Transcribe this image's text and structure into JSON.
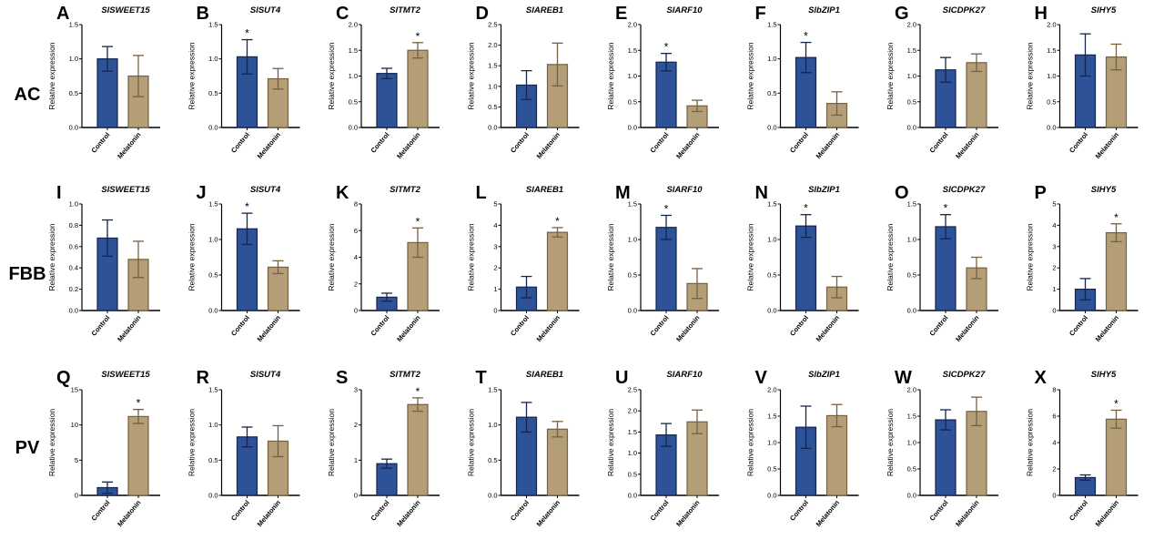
{
  "row_labels": [
    "AC",
    "FBB",
    "PV"
  ],
  "y_axis_label": "Relative expression",
  "colors": {
    "control": "#2d5297",
    "control_edge": "#14254f",
    "melatonin": "#b39e78",
    "melatonin_edge": "#75603f"
  },
  "chart_data": [
    {
      "panel": "A",
      "title": "SlSWEET15",
      "row": "AC",
      "type": "bar",
      "categories": [
        "Control",
        "Melatonin"
      ],
      "values": [
        1.0,
        0.75
      ],
      "errors": [
        0.18,
        0.3
      ],
      "significant": [
        false,
        false
      ],
      "ylim": [
        0,
        1.5
      ],
      "yticks": [
        "0.0",
        "0.5",
        "1.0",
        "1.5"
      ]
    },
    {
      "panel": "B",
      "title": "SlSUT4",
      "row": "AC",
      "type": "bar",
      "categories": [
        "Control",
        "Melatonin"
      ],
      "values": [
        1.03,
        0.71
      ],
      "errors": [
        0.25,
        0.15
      ],
      "significant": [
        true,
        false
      ],
      "ylim": [
        0,
        1.5
      ],
      "yticks": [
        "0.0",
        "0.5",
        "1.0",
        "1.5"
      ]
    },
    {
      "panel": "C",
      "title": "SlTMT2",
      "row": "AC",
      "type": "bar",
      "categories": [
        "Control",
        "Melatonin"
      ],
      "values": [
        1.05,
        1.5
      ],
      "errors": [
        0.1,
        0.15
      ],
      "significant": [
        false,
        true
      ],
      "ylim": [
        0,
        2.0
      ],
      "yticks": [
        "0.0",
        "0.5",
        "1.0",
        "1.5",
        "2.0"
      ]
    },
    {
      "panel": "D",
      "title": "SlAREB1",
      "row": "AC",
      "type": "bar",
      "categories": [
        "Control",
        "Melatonin"
      ],
      "values": [
        1.03,
        1.53
      ],
      "errors": [
        0.35,
        0.52
      ],
      "significant": [
        false,
        false
      ],
      "ylim": [
        0,
        2.5
      ],
      "yticks": [
        "0.0",
        "0.5",
        "1.0",
        "1.5",
        "2.0",
        "2.5"
      ]
    },
    {
      "panel": "E",
      "title": "SlARF10",
      "row": "AC",
      "type": "bar",
      "categories": [
        "Control",
        "Melatonin"
      ],
      "values": [
        1.27,
        0.42
      ],
      "errors": [
        0.17,
        0.11
      ],
      "significant": [
        true,
        false
      ],
      "ylim": [
        0,
        2.0
      ],
      "yticks": [
        "0.0",
        "0.5",
        "1.0",
        "1.5",
        "2.0"
      ]
    },
    {
      "panel": "F",
      "title": "SlbZIP1",
      "row": "AC",
      "type": "bar",
      "categories": [
        "Control",
        "Melatonin"
      ],
      "values": [
        1.02,
        0.35
      ],
      "errors": [
        0.22,
        0.17
      ],
      "significant": [
        true,
        false
      ],
      "ylim": [
        0,
        1.5
      ],
      "yticks": [
        "0.0",
        "0.5",
        "1.0",
        "1.5"
      ]
    },
    {
      "panel": "G",
      "title": "SlCDPK27",
      "row": "AC",
      "type": "bar",
      "categories": [
        "Control",
        "Melatonin"
      ],
      "values": [
        1.12,
        1.26
      ],
      "errors": [
        0.24,
        0.17
      ],
      "significant": [
        false,
        false
      ],
      "ylim": [
        0,
        2.0
      ],
      "yticks": [
        "0.0",
        "0.5",
        "1.0",
        "1.5",
        "2.0"
      ]
    },
    {
      "panel": "H",
      "title": "SlHY5",
      "row": "AC",
      "type": "bar",
      "categories": [
        "Control",
        "Melatonin"
      ],
      "values": [
        1.41,
        1.37
      ],
      "errors": [
        0.41,
        0.25
      ],
      "significant": [
        false,
        false
      ],
      "ylim": [
        0,
        2.0
      ],
      "yticks": [
        "0.0",
        "0.5",
        "1.0",
        "1.5",
        "2.0"
      ]
    },
    {
      "panel": "I",
      "title": "SlSWEET15",
      "row": "FBB",
      "type": "bar",
      "categories": [
        "Control",
        "Melatonin"
      ],
      "values": [
        0.68,
        0.48
      ],
      "errors": [
        0.17,
        0.17
      ],
      "significant": [
        false,
        false
      ],
      "ylim": [
        0,
        1.0
      ],
      "yticks": [
        "0.0",
        "0.2",
        "0.4",
        "0.6",
        "0.8",
        "1.0"
      ]
    },
    {
      "panel": "J",
      "title": "SlSUT4",
      "row": "FBB",
      "type": "bar",
      "categories": [
        "Control",
        "Melatonin"
      ],
      "values": [
        1.15,
        0.61
      ],
      "errors": [
        0.22,
        0.09
      ],
      "significant": [
        true,
        false
      ],
      "ylim": [
        0,
        1.5
      ],
      "yticks": [
        "0.0",
        "0.5",
        "1.0",
        "1.5"
      ]
    },
    {
      "panel": "K",
      "title": "SlTMT2",
      "row": "FBB",
      "type": "bar",
      "categories": [
        "Control",
        "Melatonin"
      ],
      "values": [
        1.0,
        5.1
      ],
      "errors": [
        0.3,
        1.1
      ],
      "significant": [
        false,
        true
      ],
      "ylim": [
        0,
        8
      ],
      "yticks": [
        "0",
        "2",
        "4",
        "6",
        "8"
      ]
    },
    {
      "panel": "L",
      "title": "SlAREB1",
      "row": "FBB",
      "type": "bar",
      "categories": [
        "Control",
        "Melatonin"
      ],
      "values": [
        1.1,
        3.67
      ],
      "errors": [
        0.5,
        0.22
      ],
      "significant": [
        false,
        true
      ],
      "ylim": [
        0,
        5
      ],
      "yticks": [
        "0",
        "1",
        "2",
        "3",
        "4",
        "5"
      ]
    },
    {
      "panel": "M",
      "title": "SlARF10",
      "row": "FBB",
      "type": "bar",
      "categories": [
        "Control",
        "Melatonin"
      ],
      "values": [
        1.17,
        0.38
      ],
      "errors": [
        0.17,
        0.21
      ],
      "significant": [
        true,
        false
      ],
      "ylim": [
        0,
        1.5
      ],
      "yticks": [
        "0.0",
        "0.5",
        "1.0",
        "1.5"
      ]
    },
    {
      "panel": "N",
      "title": "SlbZIP1",
      "row": "FBB",
      "type": "bar",
      "categories": [
        "Control",
        "Melatonin"
      ],
      "values": [
        1.19,
        0.33
      ],
      "errors": [
        0.16,
        0.15
      ],
      "significant": [
        true,
        false
      ],
      "ylim": [
        0,
        1.5
      ],
      "yticks": [
        "0.0",
        "0.5",
        "1.0",
        "1.5"
      ]
    },
    {
      "panel": "O",
      "title": "SlCDPK27",
      "row": "FBB",
      "type": "bar",
      "categories": [
        "Control",
        "Melatonin"
      ],
      "values": [
        1.18,
        0.6
      ],
      "errors": [
        0.17,
        0.15
      ],
      "significant": [
        true,
        false
      ],
      "ylim": [
        0,
        1.5
      ],
      "yticks": [
        "0.0",
        "0.5",
        "1.0",
        "1.5"
      ]
    },
    {
      "panel": "P",
      "title": "SlHY5",
      "row": "FBB",
      "type": "bar",
      "categories": [
        "Control",
        "Melatonin"
      ],
      "values": [
        1.0,
        3.65
      ],
      "errors": [
        0.5,
        0.42
      ],
      "significant": [
        false,
        true
      ],
      "ylim": [
        0,
        5
      ],
      "yticks": [
        "0",
        "1",
        "2",
        "3",
        "4",
        "5"
      ]
    },
    {
      "panel": "Q",
      "title": "SlSWEET15",
      "row": "PV",
      "type": "bar",
      "categories": [
        "Control",
        "Melatonin"
      ],
      "values": [
        1.1,
        11.2
      ],
      "errors": [
        0.8,
        1.0
      ],
      "significant": [
        false,
        true
      ],
      "ylim": [
        0,
        15
      ],
      "yticks": [
        "0",
        "5",
        "10",
        "15"
      ]
    },
    {
      "panel": "R",
      "title": "SlSUT4",
      "row": "PV",
      "type": "bar",
      "categories": [
        "Control",
        "Melatonin"
      ],
      "values": [
        0.83,
        0.77
      ],
      "errors": [
        0.14,
        0.22
      ],
      "significant": [
        false,
        false
      ],
      "ylim": [
        0,
        1.5
      ],
      "yticks": [
        "0.0",
        "0.5",
        "1.0",
        "1.5"
      ]
    },
    {
      "panel": "S",
      "title": "SlTMT2",
      "row": "PV",
      "type": "bar",
      "categories": [
        "Control",
        "Melatonin"
      ],
      "values": [
        0.9,
        2.58
      ],
      "errors": [
        0.13,
        0.19
      ],
      "significant": [
        false,
        true
      ],
      "ylim": [
        0,
        3
      ],
      "yticks": [
        "0",
        "1",
        "2",
        "3"
      ]
    },
    {
      "panel": "T",
      "title": "SlAREB1",
      "row": "PV",
      "type": "bar",
      "categories": [
        "Control",
        "Melatonin"
      ],
      "values": [
        1.11,
        0.94
      ],
      "errors": [
        0.21,
        0.11
      ],
      "significant": [
        false,
        false
      ],
      "ylim": [
        0,
        1.5
      ],
      "yticks": [
        "0.0",
        "0.5",
        "1.0",
        "1.5"
      ]
    },
    {
      "panel": "U",
      "title": "SlARF10",
      "row": "PV",
      "type": "bar",
      "categories": [
        "Control",
        "Melatonin"
      ],
      "values": [
        1.43,
        1.74
      ],
      "errors": [
        0.27,
        0.28
      ],
      "significant": [
        false,
        false
      ],
      "ylim": [
        0,
        2.5
      ],
      "yticks": [
        "0.0",
        "0.5",
        "1.0",
        "1.5",
        "2.0",
        "2.5"
      ]
    },
    {
      "panel": "V",
      "title": "SlbZIP1",
      "row": "PV",
      "type": "bar",
      "categories": [
        "Control",
        "Melatonin"
      ],
      "values": [
        1.29,
        1.51
      ],
      "errors": [
        0.4,
        0.21
      ],
      "significant": [
        false,
        false
      ],
      "ylim": [
        0,
        2.0
      ],
      "yticks": [
        "0.0",
        "0.5",
        "1.0",
        "1.5",
        "2.0"
      ]
    },
    {
      "panel": "W",
      "title": "SlCDPK27",
      "row": "PV",
      "type": "bar",
      "categories": [
        "Control",
        "Melatonin"
      ],
      "values": [
        1.43,
        1.59
      ],
      "errors": [
        0.19,
        0.27
      ],
      "significant": [
        false,
        false
      ],
      "ylim": [
        0,
        2.0
      ],
      "yticks": [
        "0.0",
        "0.5",
        "1.0",
        "1.5",
        "2.0"
      ]
    },
    {
      "panel": "X",
      "title": "SlHY5",
      "row": "PV",
      "type": "bar",
      "categories": [
        "Control",
        "Melatonin"
      ],
      "values": [
        1.35,
        5.77
      ],
      "errors": [
        0.2,
        0.68
      ],
      "significant": [
        false,
        true
      ],
      "ylim": [
        0,
        8
      ],
      "yticks": [
        "0",
        "2",
        "4",
        "6",
        "8"
      ]
    }
  ],
  "significance_marker": "*"
}
